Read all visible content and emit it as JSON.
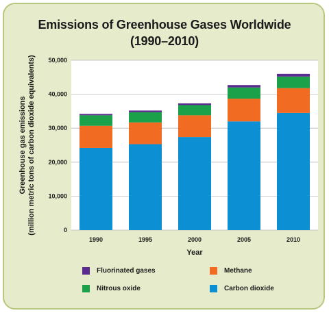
{
  "chart_data": {
    "type": "bar",
    "stacked": true,
    "title_line1": "Emissions of Greenhouse Gases Worldwide",
    "title_line2": "(1990–2010)",
    "xlabel": "Year",
    "ylabel_line1": "Greenhouse gas emissions",
    "ylabel_line2": "(million metric tons of carbon dioxide equivalents)",
    "ylim": [
      0,
      50000
    ],
    "yticks": [
      "0",
      "10,000",
      "20,000",
      "30,000",
      "40,000",
      "50,000"
    ],
    "categories": [
      "1990",
      "1995",
      "2000",
      "2005",
      "2010"
    ],
    "series": [
      {
        "name": "Carbon dioxide",
        "color": "#0d8fd3",
        "values": [
          24200,
          25300,
          27400,
          32000,
          34500
        ]
      },
      {
        "name": "Methane",
        "color": "#f26b22",
        "values": [
          6500,
          6400,
          6400,
          6700,
          7300
        ]
      },
      {
        "name": "Nitrous oxide",
        "color": "#1aa14a",
        "values": [
          3100,
          3000,
          3000,
          3300,
          3400
        ]
      },
      {
        "name": "Fluorinated gases",
        "color": "#5b2c8f",
        "values": [
          400,
          500,
          500,
          700,
          800
        ]
      }
    ],
    "legend": [
      {
        "name": "Fluorinated gases",
        "color": "#5b2c8f"
      },
      {
        "name": "Methane",
        "color": "#f26b22"
      },
      {
        "name": "Nitrous oxide",
        "color": "#1aa14a"
      },
      {
        "name": "Carbon dioxide",
        "color": "#0d8fd3"
      }
    ],
    "legend_placement": "bottom",
    "grid": true
  }
}
